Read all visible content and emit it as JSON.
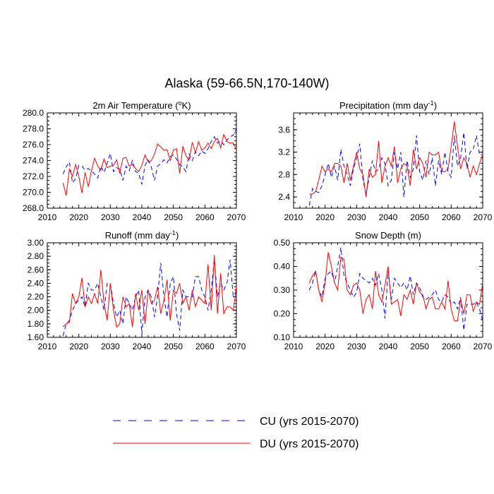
{
  "title": "Alaska (59-66.5N,170-140W)",
  "legend": [
    {
      "label": "CU (yrs 2015-2070)",
      "color": "#0000ff",
      "dash": "dashed"
    },
    {
      "label": "DU (yrs 2015-2070)",
      "color": "#ff0000",
      "dash": "solid"
    }
  ],
  "chart_data": [
    {
      "type": "line",
      "title": "2m Air Temperature (°K)",
      "title_parts": [
        "2m Air Temperature (",
        "o",
        "K)"
      ],
      "xlim": [
        2010,
        2070
      ],
      "xticks": [
        2010,
        2020,
        2030,
        2040,
        2050,
        2060,
        2070
      ],
      "ylim": [
        268,
        280
      ],
      "yticks": [
        "268.0",
        "270.0",
        "272.0",
        "274.0",
        "276.0",
        "278.0",
        "280.0"
      ],
      "x": [
        2015,
        2016,
        2017,
        2018,
        2019,
        2020,
        2021,
        2022,
        2023,
        2024,
        2025,
        2026,
        2027,
        2028,
        2029,
        2030,
        2031,
        2032,
        2033,
        2034,
        2035,
        2036,
        2037,
        2038,
        2039,
        2040,
        2041,
        2042,
        2043,
        2044,
        2045,
        2046,
        2047,
        2048,
        2049,
        2050,
        2051,
        2052,
        2053,
        2054,
        2055,
        2056,
        2057,
        2058,
        2059,
        2060,
        2061,
        2062,
        2063,
        2064,
        2065,
        2066,
        2067,
        2068,
        2069,
        2070
      ],
      "series": [
        {
          "name": "CU",
          "values": [
            272.3,
            273.2,
            273.8,
            271.2,
            271.7,
            273.4,
            273.3,
            272.8,
            273.0,
            272.7,
            272.3,
            271.8,
            273.3,
            272.5,
            273.7,
            274.9,
            272.6,
            273.1,
            272.9,
            271.5,
            273.3,
            272.7,
            274.0,
            272.6,
            272.4,
            271.0,
            273.4,
            274.1,
            273.2,
            271.5,
            273.3,
            273.6,
            274.1,
            273.7,
            274.5,
            274.7,
            274.2,
            273.5,
            273.2,
            272.6,
            274.8,
            274.0,
            275.1,
            274.6,
            275.2,
            274.9,
            275.5,
            276.4,
            277.0,
            276.2,
            276.5,
            276.0,
            276.6,
            277.0,
            277.2,
            278.0
          ]
        },
        {
          "name": "DU",
          "values": [
            271.2,
            269.6,
            272.9,
            272.0,
            273.5,
            272.0,
            269.9,
            272.5,
            270.7,
            272.7,
            274.3,
            273.3,
            272.8,
            274.2,
            273.1,
            273.3,
            273.4,
            274.1,
            272.4,
            274.3,
            274.4,
            273.3,
            273.5,
            273.0,
            272.6,
            273.4,
            274.7,
            273.8,
            274.0,
            274.8,
            276.1,
            275.7,
            275.3,
            275.4,
            274.0,
            275.3,
            275.5,
            272.4,
            275.8,
            274.6,
            274.1,
            276.3,
            275.0,
            276.4,
            275.3,
            275.6,
            276.2,
            275.5,
            276.4,
            276.8,
            275.6,
            277.3,
            276.4,
            276.2,
            276.2,
            275.4
          ]
        }
      ]
    },
    {
      "type": "line",
      "title": "Precipitation (mm day-1)",
      "title_parts": [
        "Precipitation (mm day",
        "-1",
        ")"
      ],
      "xlim": [
        2010,
        2070
      ],
      "xticks": [
        2010,
        2020,
        2030,
        2040,
        2050,
        2060,
        2070
      ],
      "ylim": [
        2.2,
        3.9
      ],
      "yticks": [
        "2.4",
        "2.8",
        "3.2",
        "3.6"
      ],
      "x": [
        2015,
        2016,
        2017,
        2018,
        2019,
        2020,
        2021,
        2022,
        2023,
        2024,
        2025,
        2026,
        2027,
        2028,
        2029,
        2030,
        2031,
        2032,
        2033,
        2034,
        2035,
        2036,
        2037,
        2038,
        2039,
        2040,
        2041,
        2042,
        2043,
        2044,
        2045,
        2046,
        2047,
        2048,
        2049,
        2050,
        2051,
        2052,
        2053,
        2054,
        2055,
        2056,
        2057,
        2058,
        2059,
        2060,
        2061,
        2062,
        2063,
        2064,
        2065,
        2066,
        2067,
        2068,
        2069,
        2070
      ],
      "series": [
        {
          "name": "CU",
          "values": [
            2.25,
            2.55,
            2.5,
            2.48,
            2.6,
            2.8,
            3.0,
            2.75,
            2.95,
            2.7,
            3.25,
            2.95,
            2.8,
            2.6,
            2.9,
            3.1,
            3.35,
            2.7,
            2.45,
            2.75,
            3.05,
            2.85,
            2.9,
            3.1,
            3.0,
            2.6,
            2.7,
            3.2,
            2.9,
            3.2,
            2.4,
            3.05,
            2.75,
            2.9,
            3.5,
            2.85,
            2.7,
            3.05,
            2.8,
            3.1,
            2.6,
            3.05,
            2.8,
            3.2,
            2.85,
            2.75,
            3.5,
            2.95,
            3.1,
            3.55,
            2.9,
            3.2,
            3.25,
            3.5,
            3.15,
            3.15
          ]
        },
        {
          "name": "DU",
          "values": [
            2.45,
            2.45,
            2.5,
            2.7,
            2.95,
            2.85,
            2.9,
            2.85,
            3.0,
            3.0,
            2.95,
            2.65,
            3.0,
            2.7,
            2.95,
            3.2,
            2.9,
            2.8,
            2.4,
            2.9,
            2.75,
            2.8,
            3.4,
            2.65,
            2.95,
            3.1,
            2.95,
            3.3,
            2.65,
            2.9,
            3.0,
            2.95,
            2.6,
            3.25,
            2.9,
            3.1,
            3.0,
            2.75,
            3.2,
            3.15,
            3.15,
            3.2,
            2.85,
            2.85,
            2.9,
            3.3,
            3.75,
            3.3,
            2.9,
            3.1,
            3.0,
            2.75,
            2.95,
            2.8,
            3.0,
            3.15
          ]
        }
      ]
    },
    {
      "type": "line",
      "title": "Runoff (mm day-1)",
      "title_parts": [
        "Runoff (mm day",
        "-1",
        ")"
      ],
      "xlim": [
        2010,
        2070
      ],
      "xticks": [
        2010,
        2020,
        2030,
        2040,
        2050,
        2060,
        2070
      ],
      "ylim": [
        1.6,
        3.0
      ],
      "yticks": [
        "1.60",
        "1.80",
        "2.00",
        "2.20",
        "2.40",
        "2.60",
        "2.80",
        "3.00"
      ],
      "x": [
        2015,
        2016,
        2017,
        2018,
        2019,
        2020,
        2021,
        2022,
        2023,
        2024,
        2025,
        2026,
        2027,
        2028,
        2029,
        2030,
        2031,
        2032,
        2033,
        2034,
        2035,
        2036,
        2037,
        2038,
        2039,
        2040,
        2041,
        2042,
        2043,
        2044,
        2045,
        2046,
        2047,
        2048,
        2049,
        2050,
        2051,
        2052,
        2053,
        2054,
        2055,
        2056,
        2057,
        2058,
        2059,
        2060,
        2061,
        2062,
        2063,
        2064,
        2065,
        2066,
        2067,
        2068,
        2069,
        2070
      ],
      "series": [
        {
          "name": "CU",
          "values": [
            1.62,
            1.8,
            1.85,
            2.0,
            2.1,
            2.15,
            2.2,
            2.05,
            2.4,
            2.3,
            2.3,
            2.4,
            2.2,
            2.0,
            2.4,
            2.4,
            2.1,
            1.9,
            2.0,
            1.8,
            2.2,
            2.1,
            2.0,
            2.2,
            2.3,
            1.65,
            2.2,
            2.3,
            2.2,
            1.9,
            2.2,
            2.7,
            2.2,
            1.9,
            2.4,
            2.5,
            1.95,
            1.7,
            2.3,
            2.2,
            2.2,
            2.2,
            2.5,
            2.5,
            2.3,
            2.2,
            2.0,
            2.3,
            2.75,
            2.2,
            2.4,
            2.3,
            2.4,
            2.75,
            2.2,
            2.2
          ]
        },
        {
          "name": "DU",
          "values": [
            1.76,
            1.8,
            1.82,
            2.25,
            2.1,
            2.2,
            2.48,
            2.05,
            2.2,
            2.1,
            2.25,
            2.1,
            2.6,
            2.1,
            1.85,
            2.4,
            2.0,
            1.75,
            1.8,
            2.2,
            2.05,
            2.1,
            1.75,
            2.25,
            2.0,
            2.3,
            1.8,
            2.3,
            2.1,
            2.15,
            2.35,
            1.95,
            2.15,
            2.45,
            1.85,
            2.3,
            2.25,
            2.4,
            2.1,
            2.2,
            2.0,
            2.3,
            2.05,
            2.2,
            2.15,
            2.1,
            2.68,
            2.0,
            2.82,
            1.95,
            2.55,
            1.95,
            2.05,
            2.05,
            2.0,
            2.35
          ]
        }
      ]
    },
    {
      "type": "line",
      "title": "Snow Depth (m)",
      "title_parts": [
        "Snow Depth (m)"
      ],
      "xlim": [
        2010,
        2070
      ],
      "xticks": [
        2010,
        2020,
        2030,
        2040,
        2050,
        2060,
        2070
      ],
      "ylim": [
        0.1,
        0.5
      ],
      "yticks": [
        "0.10",
        "0.20",
        "0.30",
        "0.40",
        "0.50"
      ],
      "x": [
        2015,
        2016,
        2017,
        2018,
        2019,
        2020,
        2021,
        2022,
        2023,
        2024,
        2025,
        2026,
        2027,
        2028,
        2029,
        2030,
        2031,
        2032,
        2033,
        2034,
        2035,
        2036,
        2037,
        2038,
        2039,
        2040,
        2041,
        2042,
        2043,
        2044,
        2045,
        2046,
        2047,
        2048,
        2049,
        2050,
        2051,
        2052,
        2053,
        2054,
        2055,
        2056,
        2057,
        2058,
        2059,
        2060,
        2061,
        2062,
        2063,
        2064,
        2065,
        2066,
        2067,
        2068,
        2069,
        2070
      ],
      "series": [
        {
          "name": "CU",
          "values": [
            0.3,
            0.33,
            0.38,
            0.3,
            0.27,
            0.35,
            0.37,
            0.38,
            0.33,
            0.4,
            0.48,
            0.36,
            0.33,
            0.3,
            0.27,
            0.29,
            0.37,
            0.35,
            0.34,
            0.33,
            0.35,
            0.32,
            0.37,
            0.3,
            0.18,
            0.38,
            0.26,
            0.35,
            0.33,
            0.31,
            0.33,
            0.3,
            0.36,
            0.28,
            0.33,
            0.31,
            0.27,
            0.26,
            0.27,
            0.28,
            0.3,
            0.26,
            0.25,
            0.28,
            0.27,
            0.24,
            0.25,
            0.22,
            0.27,
            0.13,
            0.24,
            0.24,
            0.24,
            0.25,
            0.22,
            0.17
          ]
        },
        {
          "name": "DU",
          "values": [
            0.33,
            0.36,
            0.38,
            0.3,
            0.25,
            0.33,
            0.46,
            0.4,
            0.33,
            0.3,
            0.44,
            0.43,
            0.3,
            0.28,
            0.32,
            0.33,
            0.3,
            0.2,
            0.26,
            0.28,
            0.22,
            0.38,
            0.28,
            0.25,
            0.32,
            0.4,
            0.24,
            0.25,
            0.26,
            0.19,
            0.28,
            0.26,
            0.3,
            0.24,
            0.33,
            0.29,
            0.28,
            0.22,
            0.26,
            0.27,
            0.22,
            0.22,
            0.25,
            0.22,
            0.34,
            0.22,
            0.17,
            0.17,
            0.26,
            0.2,
            0.28,
            0.28,
            0.21,
            0.25,
            0.24,
            0.33
          ]
        }
      ]
    }
  ]
}
